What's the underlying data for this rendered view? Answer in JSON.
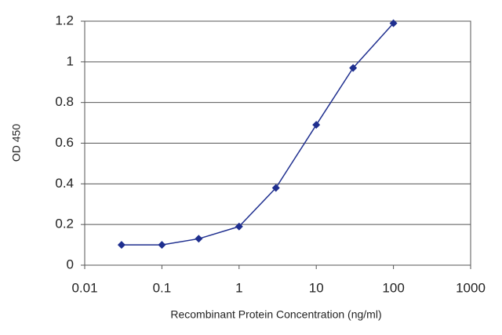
{
  "chart_data": {
    "type": "line",
    "x_label": "Recombinant Protein Concentration (ng/ml)",
    "y_label": "OD 450",
    "x": [
      0.03,
      0.1,
      0.3,
      1,
      3,
      10,
      30,
      100
    ],
    "series": [
      {
        "color": "#1f2f8f",
        "values": [
          0.1,
          0.1,
          0.13,
          0.19,
          0.38,
          0.69,
          0.97,
          1.19
        ]
      }
    ],
    "xlim": [
      0.01,
      1000
    ],
    "xticks": [
      0.01,
      0.1,
      1,
      10,
      100,
      1000
    ],
    "xscale": "log",
    "ylim": [
      0,
      1.2
    ],
    "yticks": [
      0,
      0.2,
      0.4,
      0.6,
      0.8,
      1,
      1.2
    ],
    "grid": true
  }
}
